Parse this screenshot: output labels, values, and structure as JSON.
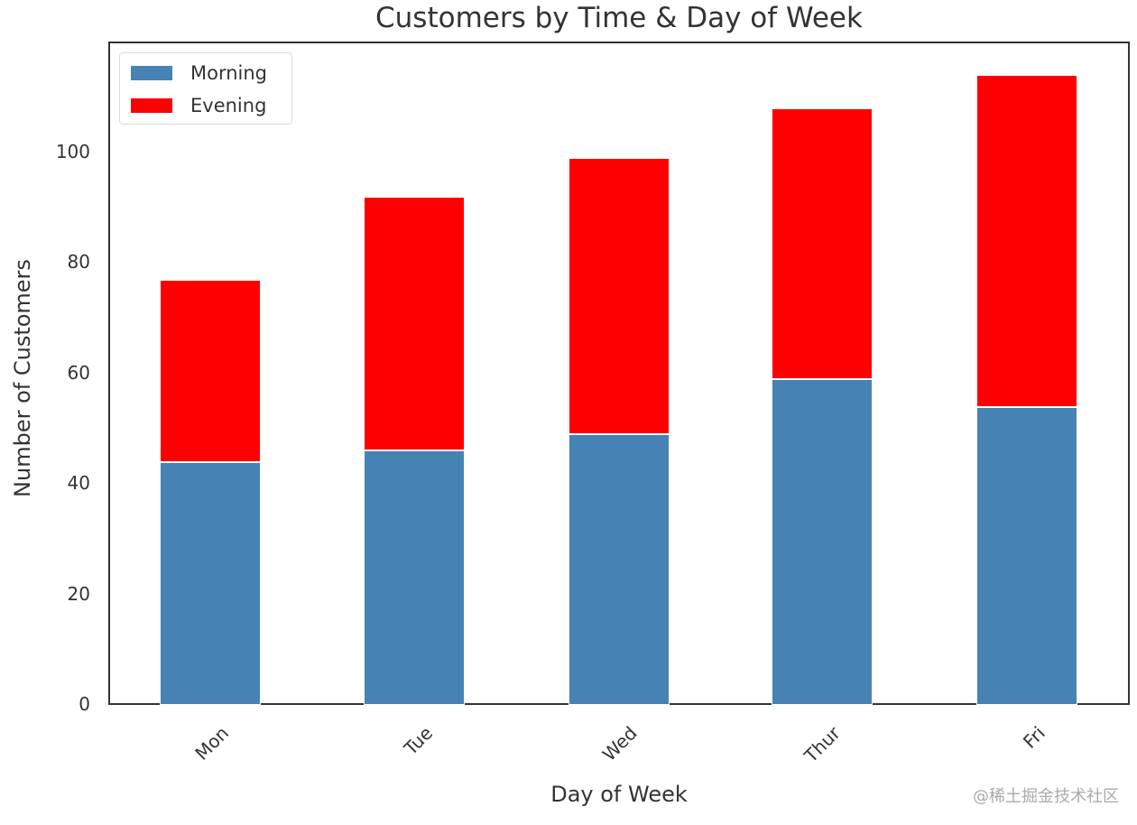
{
  "chart_data": {
    "type": "bar",
    "stacked": true,
    "title": "Customers by Time & Day of Week",
    "xlabel": "Day of Week",
    "ylabel": "Number of Customers",
    "categories": [
      "Mon",
      "Tue",
      "Wed",
      "Thur",
      "Fri"
    ],
    "series": [
      {
        "name": "Morning",
        "color": "#4682b4",
        "values": [
          44,
          46,
          49,
          59,
          54
        ]
      },
      {
        "name": "Evening",
        "color": "#ff0000",
        "values": [
          33,
          46,
          50,
          49,
          60
        ]
      }
    ],
    "totals": [
      77,
      92,
      99,
      108,
      114
    ],
    "yticks": [
      0,
      20,
      40,
      60,
      80,
      100
    ],
    "ylim": [
      0,
      120
    ],
    "grid": false,
    "legend_position": "upper left",
    "xtick_rotation": 45
  },
  "watermark": "@稀土掘金技术社区"
}
